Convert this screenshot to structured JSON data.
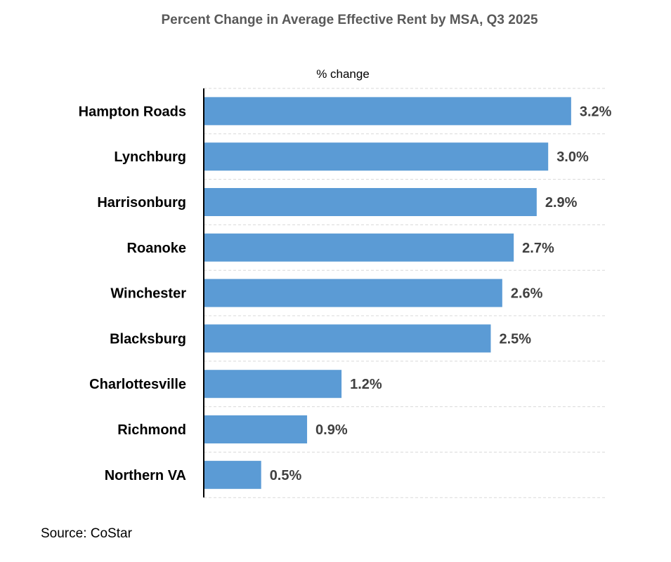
{
  "chart_data": {
    "type": "bar",
    "orientation": "horizontal",
    "title": "Percent Change in Average Effective Rent by MSA, Q3 2025",
    "unit_label": "% change",
    "source": "Source: CoStar",
    "categories": [
      "Hampton Roads",
      "Lynchburg",
      "Harrisonburg",
      "Roanoke",
      "Winchester",
      "Blacksburg",
      "Charlottesville",
      "Richmond",
      "Northern VA"
    ],
    "values": [
      3.2,
      3.0,
      2.9,
      2.7,
      2.6,
      2.5,
      1.2,
      0.9,
      0.5
    ],
    "data_labels": [
      "3.2%",
      "3.0%",
      "2.9%",
      "2.7%",
      "2.6%",
      "2.5%",
      "1.2%",
      "0.9%",
      "0.5%"
    ],
    "xlim": [
      0,
      3.5
    ],
    "grid": "horizontal dashed",
    "bar_color": "#5B9BD5"
  }
}
